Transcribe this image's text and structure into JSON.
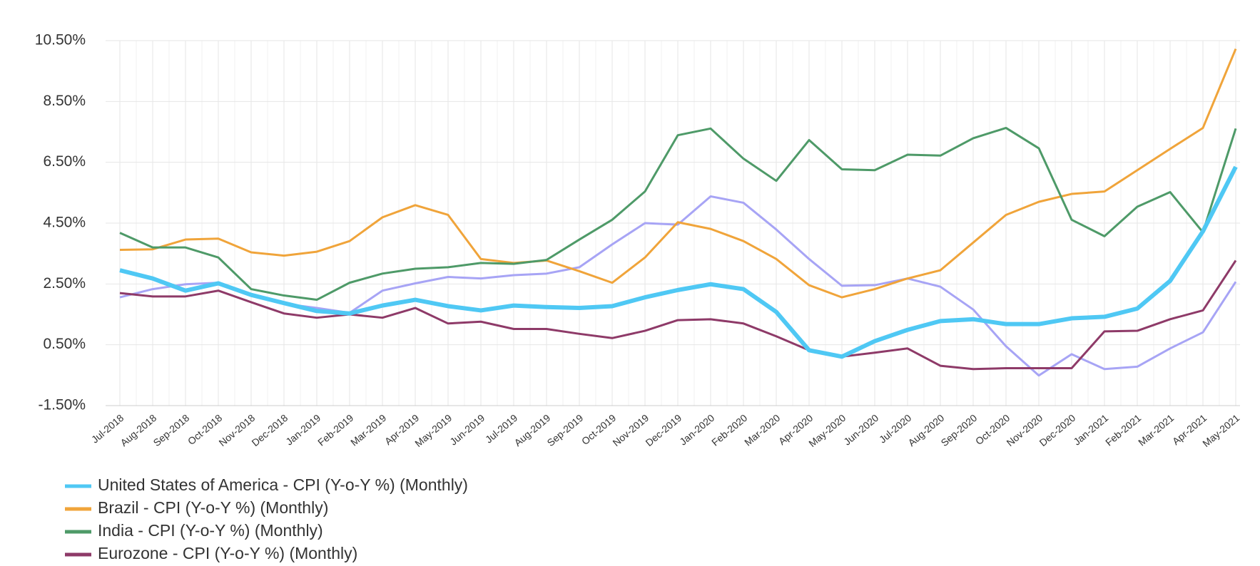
{
  "chart_data": {
    "type": "line",
    "categories": [
      "Jul-2018",
      "Aug-2018",
      "Sep-2018",
      "Oct-2018",
      "Nov-2018",
      "Dec-2018",
      "Jan-2019",
      "Feb-2019",
      "Mar-2019",
      "Apr-2019",
      "May-2019",
      "Jun-2019",
      "Jul-2019",
      "Aug-2019",
      "Sep-2019",
      "Oct-2019",
      "Nov-2019",
      "Dec-2019",
      "Jan-2020",
      "Feb-2020",
      "Mar-2020",
      "Apr-2020",
      "May-2020",
      "Jun-2020",
      "Jul-2020",
      "Aug-2020",
      "Sep-2020",
      "Oct-2020",
      "Nov-2020",
      "Dec-2020",
      "Jan-2021",
      "Feb-2021",
      "Mar-2021",
      "Apr-2021",
      "May-2021"
    ],
    "series": [
      {
        "name": "United States of America - CPI (Y-o-Y %) (Monthly)",
        "color": "#4fc8f4",
        "width": 6,
        "values": [
          2.95,
          2.68,
          2.28,
          2.52,
          2.14,
          1.87,
          1.61,
          1.53,
          1.79,
          1.98,
          1.77,
          1.63,
          1.79,
          1.74,
          1.71,
          1.77,
          2.06,
          2.3,
          2.49,
          2.33,
          1.58,
          0.32,
          0.11,
          0.62,
          0.99,
          1.28,
          1.34,
          1.18,
          1.18,
          1.37,
          1.42,
          1.69,
          2.6,
          4.23,
          6.35
        ]
      },
      {
        "name": "Brazil - CPI (Y-o-Y %) (Monthly)",
        "color": "#f0a43a",
        "width": 3,
        "values": [
          3.62,
          3.64,
          3.96,
          3.99,
          3.54,
          3.43,
          3.56,
          3.91,
          4.69,
          5.09,
          4.77,
          3.32,
          3.19,
          3.27,
          2.92,
          2.54,
          3.37,
          4.53,
          4.31,
          3.91,
          3.32,
          2.46,
          2.06,
          2.33,
          2.68,
          2.95,
          3.86,
          4.77,
          5.2,
          5.46,
          5.54,
          6.24,
          6.94,
          7.63,
          10.23
        ]
      },
      {
        "name": "India  - CPI (Y-o-Y %) (Monthly)",
        "color": "#4e9a68",
        "width": 3,
        "values": [
          4.18,
          3.7,
          3.7,
          3.37,
          2.33,
          2.12,
          1.98,
          2.54,
          2.84,
          3.0,
          3.05,
          3.19,
          3.16,
          3.29,
          3.96,
          4.61,
          5.54,
          7.39,
          7.61,
          6.62,
          5.89,
          7.23,
          6.27,
          6.24,
          6.75,
          6.72,
          7.29,
          7.63,
          6.96,
          4.61,
          4.07,
          5.04,
          5.52,
          4.2,
          7.61
        ]
      },
      {
        "name": "Eurozone - CPI (Y-o-Y %) (Monthly)",
        "color": "#8e3a68",
        "width": 3,
        "values": [
          2.2,
          2.09,
          2.09,
          2.28,
          1.9,
          1.53,
          1.39,
          1.5,
          1.39,
          1.71,
          1.2,
          1.26,
          1.02,
          1.02,
          0.86,
          0.72,
          0.96,
          1.31,
          1.34,
          1.2,
          0.78,
          0.32,
          0.11,
          0.24,
          0.38,
          -0.19,
          -0.3,
          -0.27,
          -0.27,
          -0.27,
          0.94,
          0.96,
          1.34,
          1.63,
          3.27
        ]
      },
      {
        "color": "#a7a4f5",
        "width": 3,
        "values": [
          2.06,
          2.33,
          2.49,
          2.54,
          2.12,
          1.85,
          1.71,
          1.55,
          2.28,
          2.52,
          2.73,
          2.68,
          2.79,
          2.84,
          3.05,
          3.8,
          4.5,
          4.45,
          5.38,
          5.17,
          4.29,
          3.32,
          2.44,
          2.46,
          2.68,
          2.41,
          1.66,
          0.45,
          -0.51,
          0.19,
          -0.3,
          -0.22,
          0.38,
          0.91,
          2.57
        ]
      }
    ],
    "ylim": [
      -1.5,
      10.5
    ],
    "yticks": [
      {
        "value": -1.5,
        "label": "-1.50%"
      },
      {
        "value": 0.5,
        "label": "0.50%"
      },
      {
        "value": 2.5,
        "label": "2.50%"
      },
      {
        "value": 4.5,
        "label": "4.50%"
      },
      {
        "value": 6.5,
        "label": "6.50%"
      },
      {
        "value": 8.5,
        "label": "8.50%"
      },
      {
        "value": 10.5,
        "label": "10.50%"
      }
    ],
    "grid": true
  }
}
